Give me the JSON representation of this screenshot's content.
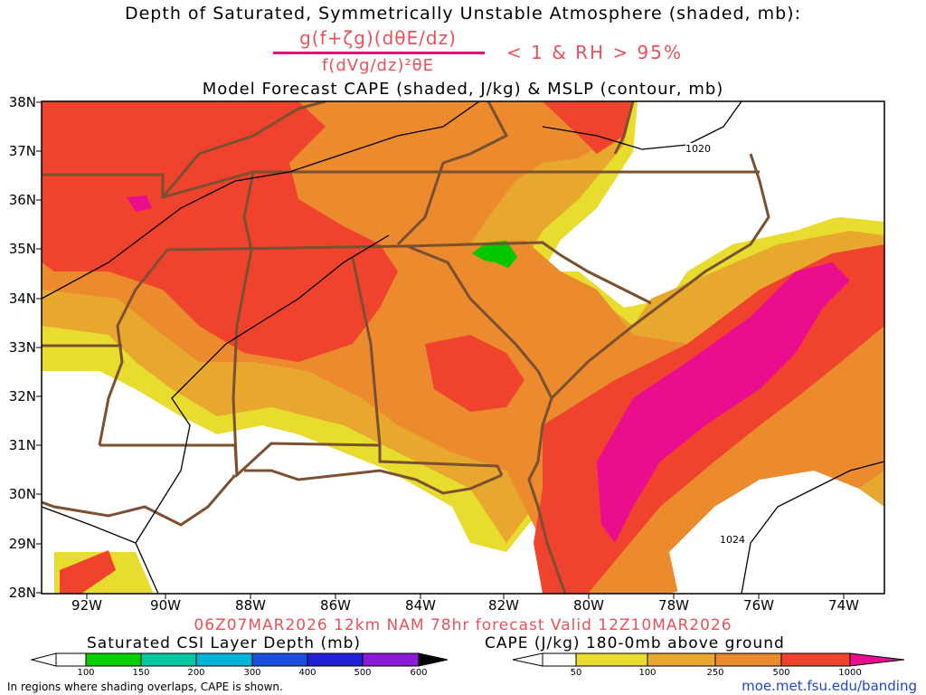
{
  "title_line1": "Depth of Saturated, Symmetrically Unstable Atmosphere (shaded, mb):",
  "formula_numerator": "g(f+ζg)(dθE/dz)",
  "formula_denominator": "f(dVg/dz)²θE",
  "formula_condition": "< 1 & RH > 95%",
  "title_line3": "Model Forecast CAPE (shaded, J/kg) & MSLP (contour, mb)",
  "lat_labels": [
    "38N",
    "37N",
    "36N",
    "35N",
    "34N",
    "33N",
    "32N",
    "31N",
    "30N",
    "29N",
    "28N"
  ],
  "lon_labels": [
    "92W",
    "90W",
    "88W",
    "86W",
    "84W",
    "82W",
    "80W",
    "78W",
    "76W",
    "74W"
  ],
  "isobar_labels": [
    "1020",
    "1024"
  ],
  "valid_line": "06Z07MAR2026 12km NAM 78hr forecast Valid 12Z10MAR2026",
  "left_colorbar": {
    "title": "Saturated CSI Layer Depth (mb)",
    "labels": [
      "100",
      "150",
      "200",
      "300",
      "400",
      "500",
      "600"
    ],
    "colors": [
      "#ffffff",
      "#00d000",
      "#00c8a0",
      "#00b4d8",
      "#1a4fe0",
      "#2020d8",
      "#8a1ad8",
      "#000000"
    ]
  },
  "right_colorbar": {
    "title": "CAPE (J/kg) 180-0mb above ground",
    "labels": [
      "50",
      "100",
      "250",
      "500",
      "1000"
    ],
    "colors": [
      "#ffffff",
      "#e8dc2e",
      "#e8a82e",
      "#ec8a2e",
      "#f0432e",
      "#ea0d8e"
    ]
  },
  "footnote": "In regions where shading overlaps, CAPE is shown.",
  "url": "moe.met.fsu.edu/banding"
}
